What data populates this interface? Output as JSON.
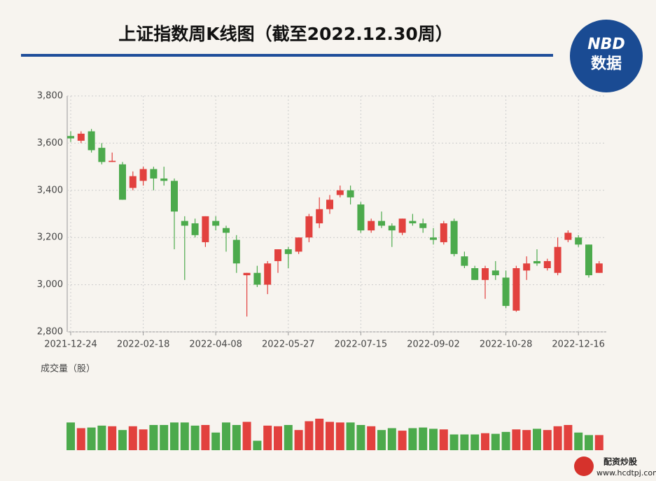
{
  "chart_data": {
    "type": "candlestick",
    "title": "上证指数周K线图（截至2022.12.30周）",
    "categories": [
      "2021-12-24",
      null,
      null,
      null,
      null,
      null,
      null,
      "2022-02-18",
      null,
      null,
      null,
      null,
      null,
      null,
      "2022-04-08",
      null,
      null,
      null,
      null,
      null,
      null,
      "2022-05-27",
      null,
      null,
      null,
      null,
      null,
      null,
      "2022-07-15",
      null,
      null,
      null,
      null,
      null,
      null,
      "2022-09-02",
      null,
      null,
      null,
      null,
      null,
      null,
      "2022-10-28",
      null,
      null,
      null,
      null,
      null,
      null,
      "2022-12-16",
      null,
      null
    ],
    "open": [
      3630,
      3610,
      3650,
      3580,
      3520,
      3510,
      3410,
      3440,
      3490,
      3450,
      3440,
      3270,
      3260,
      3180,
      3270,
      3240,
      3190,
      3040,
      3050,
      3000,
      3100,
      3150,
      3140,
      3200,
      3260,
      3320,
      3380,
      3400,
      3340,
      3230,
      3270,
      3250,
      3220,
      3270,
      3260,
      3200,
      3180,
      3270,
      3120,
      3070,
      3020,
      3060,
      3030,
      2890,
      3060,
      3100,
      3070,
      3050,
      3190,
      3200,
      3170,
      3050
    ],
    "high": [
      3650,
      3650,
      3660,
      3600,
      3560,
      3520,
      3480,
      3500,
      3500,
      3500,
      3450,
      3290,
      3280,
      3290,
      3290,
      3250,
      3210,
      3050,
      3080,
      3100,
      3150,
      3160,
      3200,
      3300,
      3370,
      3380,
      3420,
      3420,
      3350,
      3280,
      3310,
      3260,
      3280,
      3300,
      3280,
      3240,
      3270,
      3280,
      3140,
      3080,
      3080,
      3100,
      3060,
      3080,
      3120,
      3150,
      3110,
      3200,
      3230,
      3210,
      3170,
      3100
    ],
    "low": [
      3605,
      3600,
      3560,
      3510,
      3520,
      3360,
      3400,
      3420,
      3400,
      3420,
      3150,
      3020,
      3200,
      3160,
      3230,
      3140,
      3050,
      2865,
      2990,
      2960,
      3050,
      3070,
      3130,
      3180,
      3240,
      3300,
      3370,
      3340,
      3220,
      3220,
      3240,
      3160,
      3210,
      3250,
      3220,
      3170,
      3170,
      3120,
      3070,
      3020,
      2940,
      3020,
      2900,
      2885,
      3020,
      3080,
      3060,
      3040,
      3180,
      3160,
      3030,
      3050
    ],
    "close": [
      3620,
      3640,
      3570,
      3520,
      3525,
      3360,
      3460,
      3490,
      3450,
      3440,
      3310,
      3250,
      3210,
      3290,
      3250,
      3220,
      3090,
      3050,
      3000,
      3090,
      3150,
      3130,
      3200,
      3290,
      3320,
      3360,
      3400,
      3370,
      3230,
      3270,
      3250,
      3230,
      3280,
      3260,
      3240,
      3190,
      3260,
      3130,
      3080,
      3020,
      3070,
      3040,
      2910,
      3070,
      3090,
      3090,
      3100,
      3160,
      3220,
      3170,
      3040,
      3090
    ],
    "up_color": "#e2413e",
    "down_color": "#4caa4c",
    "ylim": [
      2800,
      3800
    ],
    "yticks": [
      {
        "value": 2800,
        "label": "2,800"
      },
      {
        "value": 3000,
        "label": "3,000"
      },
      {
        "value": 3200,
        "label": "3,200"
      },
      {
        "value": 3400,
        "label": "3,400"
      },
      {
        "value": 3600,
        "label": "3,600"
      },
      {
        "value": 3800,
        "label": "3,800"
      }
    ],
    "grid": true,
    "volume": {
      "label": "成交量（股）",
      "ylim": [
        0,
        50
      ],
      "values": [
        44,
        35,
        36,
        39,
        38,
        32,
        38,
        33,
        40,
        40,
        44,
        44,
        39,
        40,
        28,
        44,
        40,
        45,
        15,
        39,
        38,
        40,
        32,
        46,
        50,
        45,
        44,
        44,
        40,
        38,
        32,
        35,
        31,
        35,
        36,
        34,
        33,
        25,
        25,
        25,
        27,
        26,
        29,
        33,
        32,
        34,
        32,
        38,
        40,
        28,
        24,
        24
      ]
    }
  },
  "logo": {
    "line1": "NBD",
    "line2": "数据"
  },
  "footer": {
    "name": "配资炒股",
    "url": "www.hcdtpj.com"
  }
}
